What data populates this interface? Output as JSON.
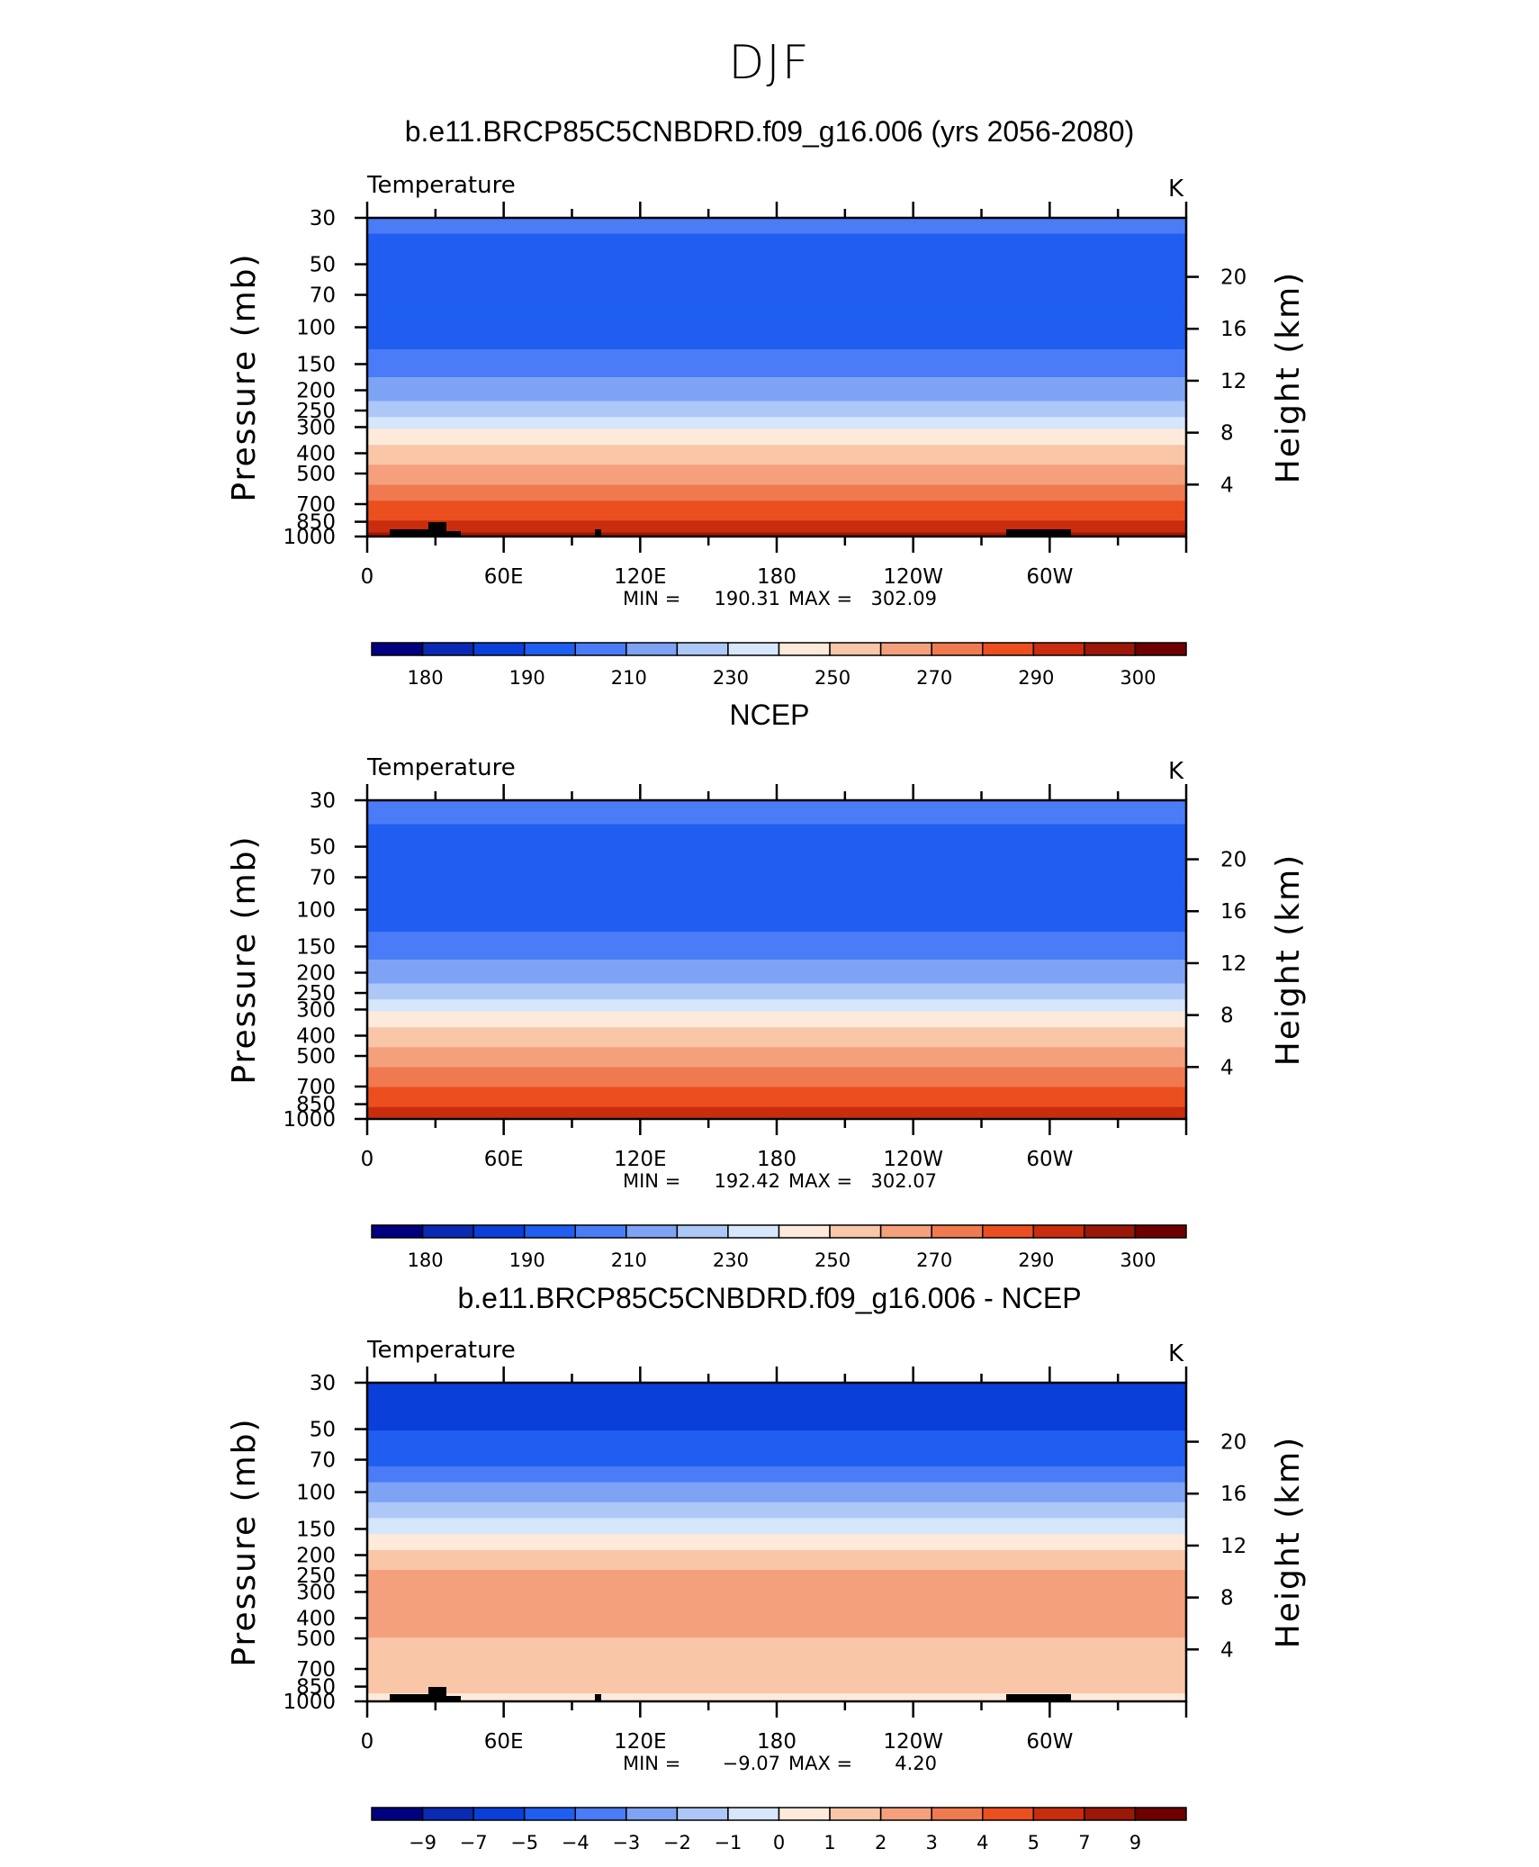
{
  "figure_title": "DJF",
  "chart_data": [
    {
      "type": "contour",
      "title": "b.e11.BRCP85C5CNBDRD.f09_g16.006 (yrs 2056-2080)",
      "variable_label": "Temperature",
      "units": "K",
      "ylabel": "Pressure (mb)",
      "ylabel_right": "Height (km)",
      "xlabel": "",
      "x_ticks": [
        "0",
        "60E",
        "120E",
        "180",
        "120W",
        "60W"
      ],
      "y_ticks": [
        "30",
        "50",
        "70",
        "100",
        "150",
        "200",
        "250",
        "300",
        "400",
        "500",
        "700",
        "850",
        "1000"
      ],
      "y_right_ticks": [
        "20",
        "16",
        "12",
        "8",
        "4"
      ],
      "stats": {
        "min_label": "MIN =",
        "min": "190.31",
        "max_label": "MAX =",
        "max": "302.09"
      },
      "colorbar_labels": [
        "180",
        "190",
        "210",
        "230",
        "250",
        "270",
        "290",
        "300"
      ],
      "contour_levels": [
        180,
        185,
        190,
        200,
        210,
        220,
        230,
        240,
        250,
        260,
        270,
        280,
        290,
        295,
        300
      ],
      "profile": [
        [
          30,
          205
        ],
        [
          50,
          192
        ],
        [
          70,
          191
        ],
        [
          100,
          192
        ],
        [
          150,
          205
        ],
        [
          200,
          215
        ],
        [
          250,
          225
        ],
        [
          300,
          238
        ],
        [
          400,
          254
        ],
        [
          500,
          265
        ],
        [
          700,
          281
        ],
        [
          850,
          290
        ],
        [
          1000,
          296
        ]
      ]
    },
    {
      "type": "contour",
      "title": "NCEP",
      "variable_label": "Temperature",
      "units": "K",
      "ylabel": "Pressure (mb)",
      "ylabel_right": "Height (km)",
      "xlabel": "",
      "x_ticks": [
        "0",
        "60E",
        "120E",
        "180",
        "120W",
        "60W"
      ],
      "y_ticks": [
        "30",
        "50",
        "70",
        "100",
        "150",
        "200",
        "250",
        "300",
        "400",
        "500",
        "700",
        "850",
        "1000"
      ],
      "y_right_ticks": [
        "20",
        "16",
        "12",
        "8",
        "4"
      ],
      "stats": {
        "min_label": "MIN =",
        "min": "192.42",
        "max_label": "MAX =",
        "max": "302.07"
      },
      "colorbar_labels": [
        "180",
        "190",
        "210",
        "230",
        "250",
        "270",
        "290",
        "300"
      ],
      "contour_levels": [
        180,
        185,
        190,
        200,
        210,
        220,
        230,
        240,
        250,
        260,
        270,
        280,
        290,
        295,
        300
      ],
      "profile": [
        [
          30,
          206
        ],
        [
          50,
          195
        ],
        [
          70,
          193
        ],
        [
          100,
          193
        ],
        [
          150,
          205
        ],
        [
          200,
          215
        ],
        [
          250,
          226
        ],
        [
          300,
          238
        ],
        [
          400,
          254
        ],
        [
          500,
          265
        ],
        [
          700,
          280
        ],
        [
          850,
          289
        ],
        [
          1000,
          295
        ]
      ]
    },
    {
      "type": "contour",
      "title": "b.e11.BRCP85C5CNBDRD.f09_g16.006 - NCEP",
      "variable_label": "Temperature",
      "units": "K",
      "ylabel": "Pressure (mb)",
      "ylabel_right": "Height (km)",
      "xlabel": "",
      "x_ticks": [
        "0",
        "60E",
        "120E",
        "180",
        "120W",
        "60W"
      ],
      "y_ticks": [
        "30",
        "50",
        "70",
        "100",
        "150",
        "200",
        "250",
        "300",
        "400",
        "500",
        "700",
        "850",
        "1000"
      ],
      "y_right_ticks": [
        "20",
        "16",
        "12",
        "8",
        "4"
      ],
      "stats": {
        "min_label": "MIN =",
        "min": "−9.07",
        "max_label": "MAX =",
        "max": "4.20"
      },
      "colorbar_labels": [
        "−9",
        "−7",
        "−5",
        "−4",
        "−3",
        "−2",
        "−1",
        "0",
        "1",
        "2",
        "3",
        "4",
        "5",
        "7",
        "9"
      ],
      "contour_levels": [
        -9,
        -7,
        -5,
        -4,
        -3,
        -2,
        -1,
        0,
        1,
        2,
        3,
        4,
        5,
        7,
        9
      ],
      "profile": [
        [
          30,
          -5.5
        ],
        [
          50,
          -5
        ],
        [
          70,
          -4.5
        ],
        [
          100,
          -2.5
        ],
        [
          150,
          -0.5
        ],
        [
          200,
          1.5
        ],
        [
          250,
          2.2
        ],
        [
          300,
          2.8
        ],
        [
          400,
          2.5
        ],
        [
          500,
          2
        ],
        [
          700,
          1.5
        ],
        [
          850,
          1.5
        ],
        [
          1000,
          0.5
        ]
      ]
    }
  ],
  "colors": {
    "palette": [
      "#000080",
      "#0a2ab3",
      "#0a3fd9",
      "#1f5ef0",
      "#4a7cf7",
      "#7ea3f4",
      "#adc8f7",
      "#d6e6fb",
      "#fdeadb",
      "#f9c6a8",
      "#f4a07c",
      "#f07a50",
      "#eb4f1f",
      "#c92d0e",
      "#9b1708",
      "#6e0000"
    ],
    "topography": "#000000"
  }
}
